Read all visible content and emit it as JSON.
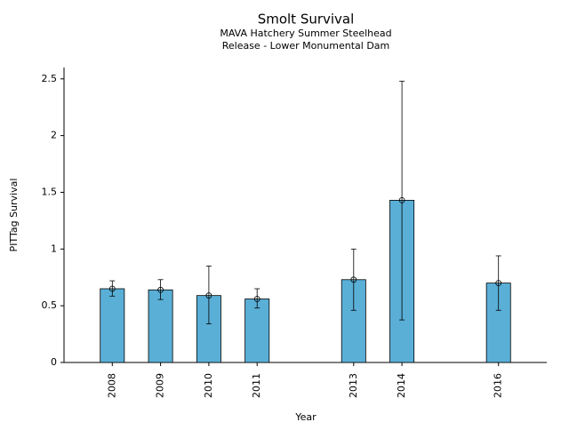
{
  "chart_data": {
    "type": "bar",
    "title": "Smolt Survival",
    "subtitle": [
      "MAVA Hatchery Summer Steelhead",
      "Release - Lower Monumental Dam"
    ],
    "x_label": "Year",
    "y_label": "PITTag Survival",
    "x": [
      2008,
      2009,
      2010,
      2011,
      2013,
      2014,
      2016
    ],
    "values": [
      0.65,
      0.64,
      0.59,
      0.56,
      0.73,
      1.43,
      0.7
    ],
    "lower": [
      0.585,
      0.555,
      0.34,
      0.48,
      0.46,
      0.375,
      0.46
    ],
    "upper": [
      0.72,
      0.73,
      0.85,
      0.65,
      1.0,
      2.48,
      0.94
    ],
    "color": "#5aafd7",
    "bar_width": 0.5,
    "xlim": [
      2007,
      2017
    ],
    "ylim": [
      0,
      2.6
    ],
    "yticks": [
      0,
      0.5,
      1,
      1.5,
      2,
      2.5
    ],
    "grid": false
  }
}
